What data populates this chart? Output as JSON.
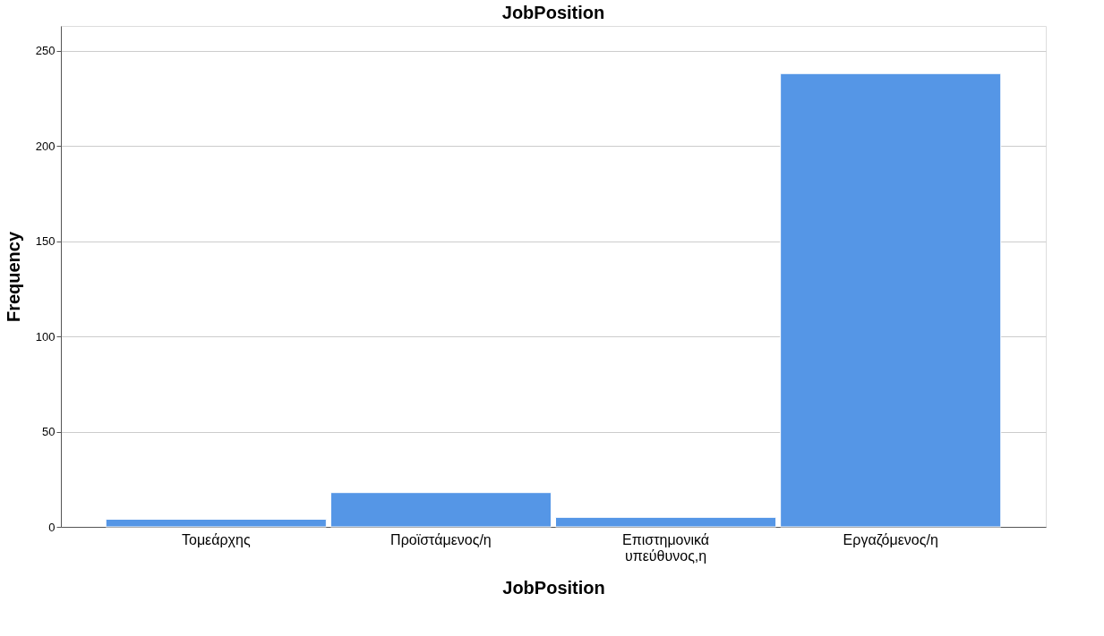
{
  "chart_data": {
    "type": "bar",
    "title": "JobPosition",
    "xlabel": "JobPosition",
    "ylabel": "Frequency",
    "categories": [
      "Τομεάρχης",
      "Προϊστάμενος/η",
      "Επιστημονικά υπεύθυνος,η",
      "Εργαζόμενος/η"
    ],
    "values": [
      4,
      18,
      5,
      238
    ],
    "color": "#5596e6",
    "ylim": [
      0,
      263
    ],
    "yticks": [
      0,
      50,
      100,
      150,
      200,
      250
    ],
    "grid": "y"
  }
}
